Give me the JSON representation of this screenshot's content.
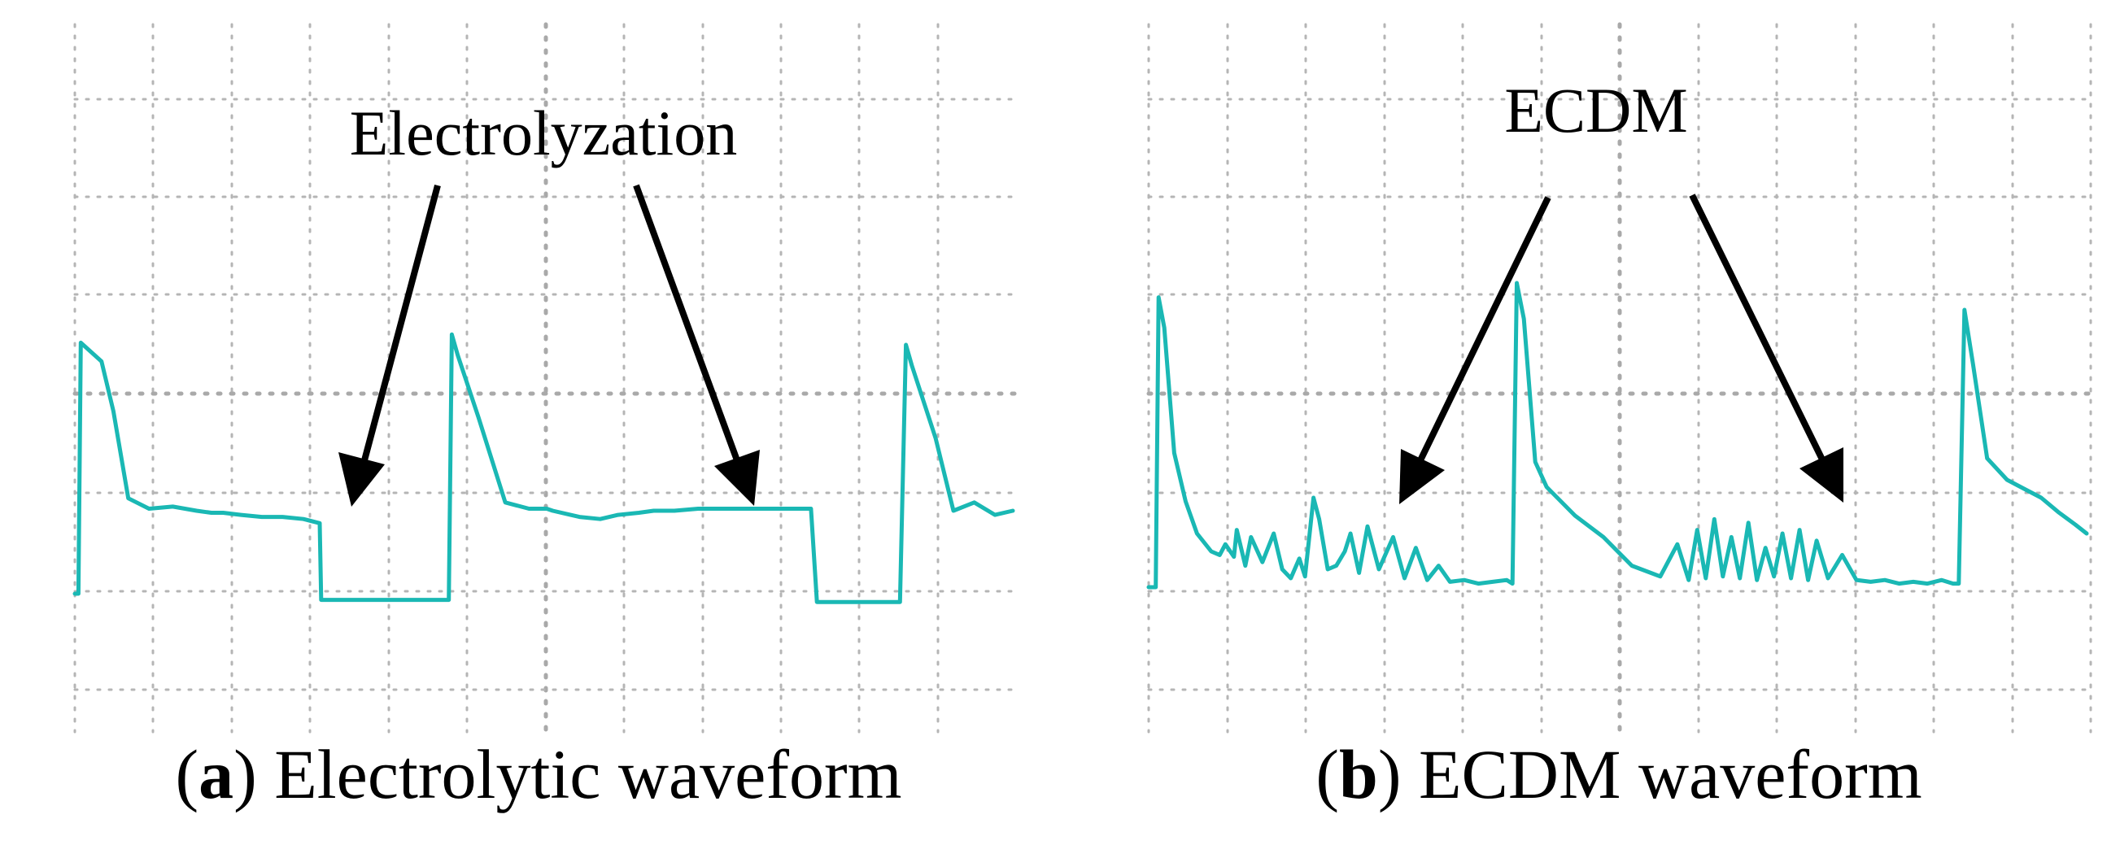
{
  "chart_data": [
    {
      "type": "line",
      "panel": "a",
      "caption_letter": "a",
      "caption_text": "Electrolytic waveform",
      "annotation": "Electrolyzation",
      "grid": true,
      "series": [
        {
          "color": "#1ab8b4",
          "x": [
            0.0,
            0.12,
            0.2,
            0.9,
            1.3,
            1.8,
            2.5,
            3.3,
            4.1,
            4.6,
            5.0,
            5.6,
            6.3,
            7.0,
            7.7,
            8.25,
            8.3,
            8.5,
            9.3,
            10.2,
            11.0,
            11.6,
            12.3,
            12.6,
            12.7,
            12.9,
            13.6,
            14.5,
            15.3,
            15.9,
            16.1,
            17.0,
            17.7,
            18.3,
            19.0,
            19.5,
            20.2,
            21.0,
            21.6,
            22.3,
            23.0,
            23.7,
            24.3,
            24.8,
            25.0,
            25.2,
            26.1,
            27.0,
            27.8,
            28.0,
            28.2,
            29.0,
            29.6,
            30.3,
            31.0,
            31.6
          ],
          "y": [
            0.0,
            0.0,
            1.21,
            1.12,
            0.88,
            0.46,
            0.41,
            0.42,
            0.4,
            0.39,
            0.39,
            0.38,
            0.37,
            0.37,
            0.36,
            0.34,
            -0.03,
            -0.03,
            -0.03,
            -0.03,
            -0.03,
            -0.03,
            -0.03,
            -0.03,
            1.25,
            1.15,
            0.85,
            0.44,
            0.41,
            0.41,
            0.4,
            0.37,
            0.36,
            0.38,
            0.39,
            0.4,
            0.4,
            0.41,
            0.41,
            0.41,
            0.41,
            0.41,
            0.41,
            0.41,
            -0.04,
            -0.04,
            -0.04,
            -0.04,
            -0.04,
            1.2,
            1.1,
            0.75,
            0.4,
            0.44,
            0.38,
            0.4
          ]
        }
      ]
    },
    {
      "type": "line",
      "panel": "b",
      "caption_letter": "b",
      "caption_text": "ECDM waveform",
      "annotation": "ECDM",
      "grid": true,
      "series": [
        {
          "color": "#1ab8b4",
          "x": [
            0.0,
            0.25,
            0.35,
            0.55,
            0.9,
            1.3,
            1.7,
            2.2,
            2.5,
            2.7,
            3.0,
            3.1,
            3.4,
            3.6,
            4.0,
            4.4,
            4.7,
            5.0,
            5.3,
            5.5,
            5.8,
            6.0,
            6.3,
            6.6,
            6.9,
            7.1,
            7.4,
            7.7,
            8.1,
            8.6,
            9.0,
            9.4,
            9.8,
            10.2,
            10.6,
            11.1,
            11.6,
            12.1,
            12.6,
            12.8,
            12.95,
            13.2,
            13.6,
            14.0,
            15.0,
            16.0,
            17.0,
            18.0,
            18.6,
            19.0,
            19.3,
            19.6,
            19.9,
            20.2,
            20.5,
            20.8,
            21.1,
            21.4,
            21.7,
            22.0,
            22.3,
            22.6,
            22.9,
            23.2,
            23.5,
            23.9,
            24.4,
            24.9,
            25.4,
            25.9,
            26.4,
            26.9,
            27.4,
            27.9,
            28.3,
            28.5,
            28.7,
            29.0,
            29.5,
            30.2,
            30.8,
            31.4,
            32.0,
            32.6,
            33.0
          ],
          "y": [
            0.0,
            0.0,
            1.62,
            1.45,
            0.75,
            0.48,
            0.3,
            0.2,
            0.18,
            0.24,
            0.17,
            0.32,
            0.12,
            0.28,
            0.14,
            0.3,
            0.1,
            0.05,
            0.16,
            0.06,
            0.5,
            0.38,
            0.1,
            0.12,
            0.2,
            0.3,
            0.08,
            0.34,
            0.1,
            0.28,
            0.05,
            0.22,
            0.04,
            0.12,
            0.03,
            0.04,
            0.02,
            0.03,
            0.04,
            0.02,
            1.7,
            1.5,
            0.7,
            0.56,
            0.4,
            0.28,
            0.12,
            0.06,
            0.24,
            0.04,
            0.32,
            0.05,
            0.38,
            0.06,
            0.28,
            0.05,
            0.36,
            0.04,
            0.22,
            0.06,
            0.3,
            0.05,
            0.32,
            0.04,
            0.26,
            0.05,
            0.18,
            0.04,
            0.03,
            0.04,
            0.02,
            0.03,
            0.02,
            0.04,
            0.02,
            0.02,
            1.55,
            1.25,
            0.72,
            0.6,
            0.55,
            0.5,
            0.42,
            0.35,
            0.3
          ]
        }
      ]
    }
  ]
}
